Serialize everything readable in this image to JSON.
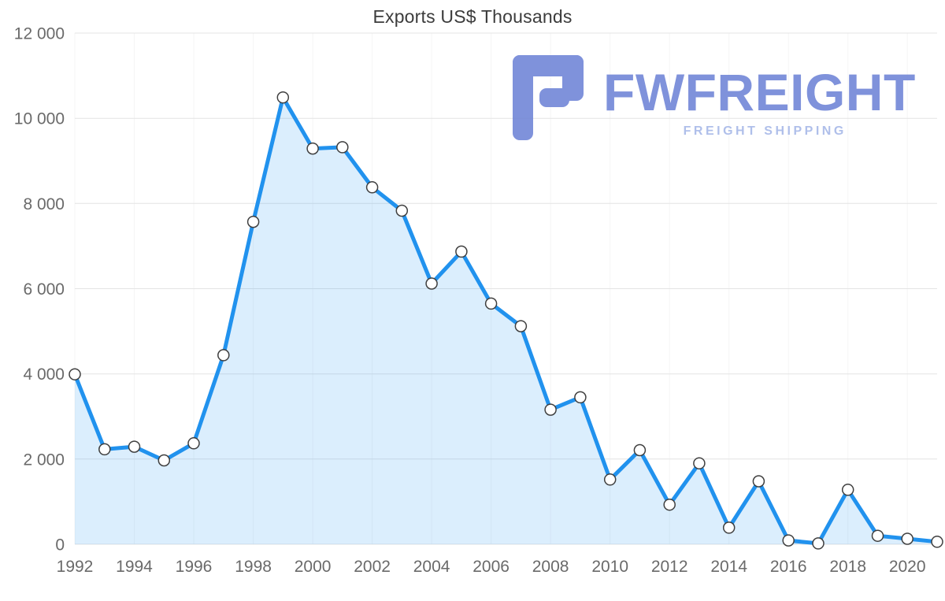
{
  "chart_data": {
    "type": "area",
    "title": "Exports US$ Thousands",
    "xlabel": "",
    "ylabel": "",
    "ylim": [
      0,
      12000
    ],
    "grid": "horizontal",
    "legend": "none",
    "x": [
      1992,
      1993,
      1994,
      1995,
      1996,
      1997,
      1998,
      1999,
      2000,
      2001,
      2002,
      2003,
      2004,
      2005,
      2006,
      2007,
      2008,
      2009,
      2010,
      2011,
      2012,
      2013,
      2014,
      2015,
      2016,
      2017,
      2018,
      2019,
      2020,
      2021
    ],
    "values": [
      3990,
      2230,
      2290,
      1970,
      2370,
      4440,
      7570,
      10490,
      9290,
      9320,
      8380,
      7830,
      6120,
      6870,
      5650,
      5120,
      3160,
      3450,
      1520,
      2210,
      930,
      1900,
      390,
      1480,
      90,
      20,
      1280,
      200,
      130,
      60
    ],
    "yticks": [
      {
        "value": 0,
        "label": "0"
      },
      {
        "value": 2000,
        "label": "2 000"
      },
      {
        "value": 4000,
        "label": "4 000"
      },
      {
        "value": 6000,
        "label": "6 000"
      },
      {
        "value": 8000,
        "label": "8 000"
      },
      {
        "value": 10000,
        "label": "10 000"
      },
      {
        "value": 12000,
        "label": "12 000"
      }
    ],
    "xtick_years": [
      1992,
      1994,
      1996,
      1998,
      2000,
      2002,
      2004,
      2006,
      2008,
      2010,
      2012,
      2014,
      2016,
      2018,
      2020
    ],
    "line_color": "#2192ee",
    "fill_color": "#2196f3",
    "fill_opacity": 0.16,
    "marker_fill": "#ffffff",
    "marker_stroke": "#3f3f3f",
    "gridline_color": "#e4e4e4",
    "tick_color": "#6a6a6a"
  },
  "watermark": {
    "brand": "FWFREIGHT",
    "tagline": "FREIGHT SHIPPING",
    "brand_color": "#7589d8",
    "tagline_color": "#a9bae9"
  }
}
